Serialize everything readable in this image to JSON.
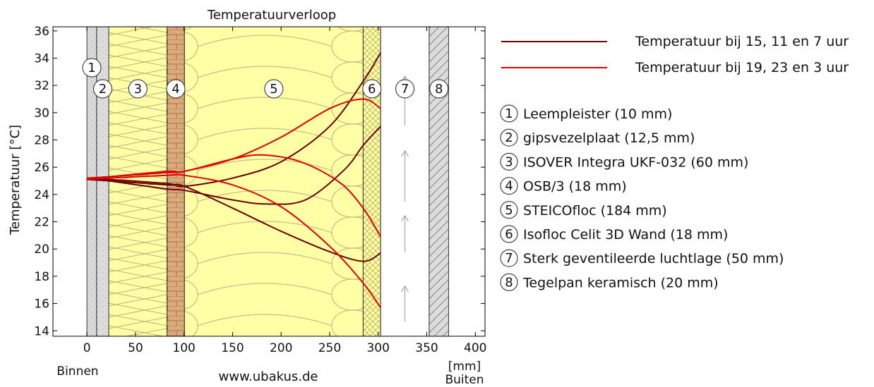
{
  "chart_data": {
    "type": "line",
    "title": "Temperatuurverloop",
    "ylabel": "Temperatuur [°C]",
    "xlabel": "[mm]",
    "ylim": [
      13.6,
      36.3
    ],
    "xlim": [
      -35,
      410
    ],
    "x_ticks": [
      0,
      50,
      100,
      150,
      200,
      250,
      300,
      350,
      400
    ],
    "y_ticks": [
      14,
      16,
      18,
      20,
      22,
      24,
      26,
      28,
      30,
      32,
      34,
      36
    ],
    "bottom_left_label": "Binnen",
    "bottom_right_label": "Buiten",
    "footer": "www.ubakus.de",
    "layers": [
      {
        "num": "1",
        "name": "Leempleister (10 mm)",
        "x0": 0,
        "x1": 10,
        "color": "#d9d9d9",
        "pattern": "dots"
      },
      {
        "num": "2",
        "name": "gipsvezelplaat (12,5 mm)",
        "x0": 10,
        "x1": 22.5,
        "color": "#dcdcdc",
        "pattern": "dots"
      },
      {
        "num": "3",
        "name": "ISOVER Integra UKF-032 (60 mm)",
        "x0": 22.5,
        "x1": 82.5,
        "color": "#ffffa6",
        "pattern": "zigzag"
      },
      {
        "num": "4",
        "name": "OSB/3 (18 mm)",
        "x0": 82.5,
        "x1": 100.5,
        "color": "#dcaa78",
        "pattern": "bricks"
      },
      {
        "num": "5",
        "name": "STEICOfloc (184 mm)",
        "x0": 100.5,
        "x1": 284.5,
        "color": "#ffffa6",
        "pattern": "loops"
      },
      {
        "num": "6",
        "name": "Isofloc Celit 3D Wand (18 mm)",
        "x0": 284.5,
        "x1": 302.5,
        "color": "#ffffa6",
        "pattern": "cross"
      },
      {
        "num": "7",
        "name": "Sterk geventileerde luchtlage (50 mm)",
        "x0": 302.5,
        "x1": 352.5,
        "color": "#ffffff",
        "pattern": "arrows"
      },
      {
        "num": "8",
        "name": "Tegelpan keramisch (20 mm)",
        "x0": 352.5,
        "x1": 372.5,
        "color": "#dcdcdc",
        "pattern": "hatch"
      }
    ],
    "series": [
      {
        "name": "Temperatuur bij 15, 11 en 7 uur",
        "color": "#6b0000",
        "curves": [
          {
            "x": [
              0,
              22.5,
              82.5,
              100.5,
              150,
              200,
              250,
              284.5,
              302.5
            ],
            "y": [
              25.1,
              25.1,
              24.8,
              24.6,
              25.2,
              26.4,
              29.0,
              32.3,
              34.4
            ]
          },
          {
            "x": [
              0,
              22.5,
              82.5,
              100.5,
              150,
              185,
              225,
              265,
              284.5,
              302.5
            ],
            "y": [
              25.2,
              25.0,
              24.4,
              24.3,
              23.6,
              23.3,
              23.6,
              25.8,
              27.6,
              29.0
            ]
          },
          {
            "x": [
              0,
              22.5,
              82.5,
              100.5,
              150,
              200,
              250,
              284.5,
              302.5
            ],
            "y": [
              25.1,
              25.0,
              24.7,
              24.6,
              23.0,
              21.3,
              19.8,
              19.1,
              19.7
            ]
          }
        ]
      },
      {
        "name": "Temperatuur bij 19, 23 en 3 uur",
        "color": "#e00000",
        "curves": [
          {
            "x": [
              0,
              22.5,
              82.5,
              100.5,
              150,
              200,
              250,
              284.5,
              302.5
            ],
            "y": [
              25.2,
              25.3,
              25.6,
              25.7,
              26.6,
              28.2,
              30.3,
              31.0,
              30.3
            ]
          },
          {
            "x": [
              0,
              22.5,
              82.5,
              100.5,
              150,
              180,
              220,
              260,
              284.5,
              302.5
            ],
            "y": [
              25.2,
              25.3,
              25.7,
              25.7,
              26.6,
              26.9,
              26.4,
              24.9,
              23.0,
              20.9
            ]
          },
          {
            "x": [
              0,
              22.5,
              82.5,
              100.5,
              150,
              200,
              250,
              284.5,
              302.5
            ],
            "y": [
              25.1,
              25.2,
              25.4,
              25.4,
              24.7,
              23.1,
              20.2,
              17.5,
              15.7
            ]
          }
        ]
      }
    ],
    "grid": false,
    "legend_position": "right"
  }
}
